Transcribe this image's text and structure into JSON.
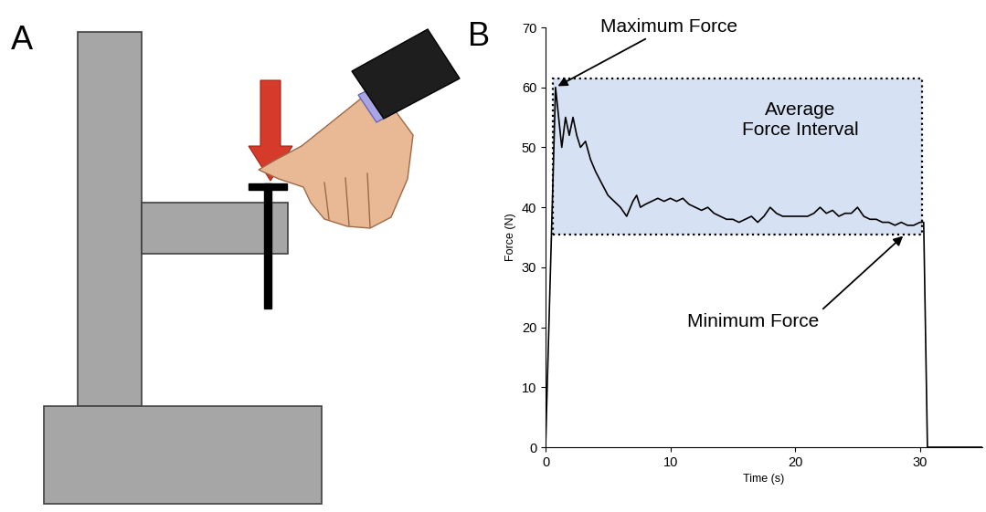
{
  "panel_labels": [
    "A",
    "B"
  ],
  "chart_data": {
    "type": "line",
    "xlabel": "Time (s)",
    "ylabel": "Force (N)",
    "x": [
      0,
      0.8,
      1.0,
      1.3,
      1.6,
      1.9,
      2.2,
      2.5,
      2.8,
      3.2,
      3.6,
      4.0,
      4.5,
      5.0,
      5.5,
      6.0,
      6.5,
      7.0,
      7.3,
      7.6,
      8.0,
      8.5,
      9.0,
      9.5,
      10,
      10.5,
      11,
      11.5,
      12,
      12.5,
      13,
      13.5,
      14,
      14.5,
      15,
      15.5,
      16,
      16.5,
      17,
      17.5,
      18,
      18.5,
      19,
      19.5,
      20,
      20.5,
      21,
      21.5,
      22,
      22.5,
      23,
      23.5,
      24,
      24.5,
      25,
      25.5,
      26,
      26.5,
      27,
      27.5,
      28,
      28.5,
      29,
      29.5,
      30,
      30.3,
      30.6,
      35
    ],
    "values": [
      0,
      60,
      56,
      50,
      55,
      52,
      55,
      52,
      50,
      51,
      48,
      46,
      44,
      42,
      41,
      40,
      38.5,
      41,
      42,
      40,
      40.5,
      41,
      41.5,
      41,
      41.5,
      41,
      41.5,
      40.5,
      40,
      39.5,
      40,
      39,
      38.5,
      38,
      38,
      37.5,
      38,
      38.5,
      37.5,
      38.5,
      40,
      39,
      38.5,
      38.5,
      38.5,
      38.5,
      38.5,
      39,
      40,
      39,
      39.5,
      38.5,
      39,
      39,
      40,
      38.5,
      38,
      38,
      37.5,
      37.5,
      37,
      37.5,
      37,
      37,
      37.5,
      37.5,
      0,
      0
    ],
    "color": "#000000",
    "xlim": [
      0,
      35
    ],
    "ylim": [
      0,
      70
    ],
    "xticks": [
      0,
      10,
      20,
      30
    ],
    "yticks": [
      0,
      10,
      20,
      30,
      40,
      50,
      60,
      70
    ],
    "grid": false,
    "annotations": [
      {
        "text": "Maximum Force",
        "x": 0.8,
        "y": 60
      },
      {
        "text": "Minimum Force",
        "x": 28.8,
        "y": 35.5
      }
    ],
    "interval": {
      "text": "Average\nForce Interval",
      "x": [
        0.6,
        30.2
      ],
      "y": [
        35.5,
        61.5
      ]
    }
  }
}
